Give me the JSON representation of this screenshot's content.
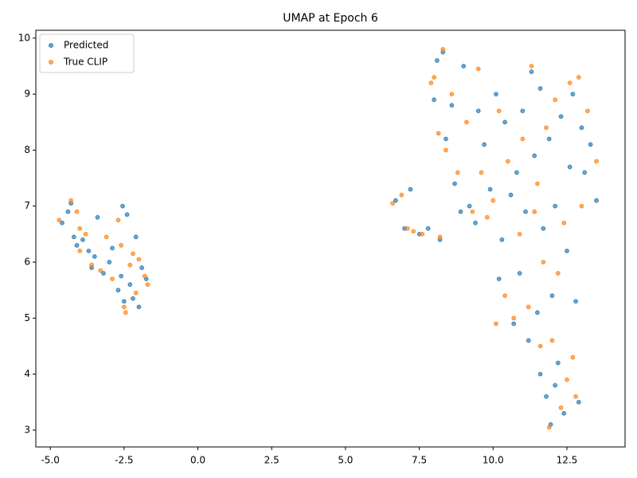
{
  "chart_data": {
    "type": "scatter",
    "title": "UMAP at Epoch 6",
    "legend": "upper left",
    "xlim": [
      -5.49,
      14.47
    ],
    "ylim": [
      2.7,
      10.14
    ],
    "xticks": [
      {
        "value": -5,
        "label": "-5.0"
      },
      -2.5,
      {
        "value": 0,
        "label": "0.0"
      },
      2.5,
      {
        "value": 5,
        "label": "5.0"
      },
      7.5,
      {
        "value": 10,
        "label": "10.0"
      },
      12.5
    ],
    "yticks": [
      3,
      4,
      5,
      6,
      7,
      8,
      9,
      10
    ],
    "series": [
      {
        "name": "Predicted",
        "color": "#1f77b4",
        "x": [
          -4.6,
          -4.4,
          -4.3,
          -4.2,
          -4.1,
          -3.9,
          -3.7,
          -3.6,
          -3.4,
          -3.2,
          -3.0,
          -2.9,
          -2.7,
          -2.6,
          -2.55,
          -2.4,
          -2.3,
          -2.2,
          -2.1,
          -2.0,
          -1.9,
          -1.75,
          -2.5,
          -3.5,
          6.7,
          7.0,
          7.2,
          7.5,
          7.8,
          8.0,
          8.1,
          8.2,
          8.3,
          8.4,
          8.6,
          8.7,
          8.9,
          9.2,
          9.4,
          9.5,
          9.7,
          9.9,
          10.1,
          10.2,
          10.3,
          10.4,
          10.6,
          10.7,
          10.9,
          11.0,
          11.1,
          11.2,
          11.3,
          11.4,
          11.5,
          11.6,
          11.7,
          11.8,
          11.9,
          11.95,
          12.0,
          12.1,
          12.2,
          12.3,
          12.4,
          12.5,
          12.6,
          12.7,
          12.8,
          12.9,
          13.0,
          13.1,
          13.3,
          13.5,
          11.6,
          12.1,
          9.0,
          10.8
        ],
        "values": [
          6.7,
          6.9,
          7.05,
          6.45,
          6.3,
          6.4,
          6.2,
          5.9,
          6.8,
          5.8,
          6.0,
          6.25,
          5.5,
          5.75,
          7.0,
          6.85,
          5.6,
          5.35,
          6.45,
          5.2,
          5.9,
          5.7,
          5.3,
          6.1,
          7.1,
          6.6,
          7.3,
          6.5,
          6.6,
          8.9,
          9.6,
          6.4,
          9.75,
          8.2,
          8.8,
          7.4,
          6.9,
          7.0,
          6.7,
          8.7,
          8.1,
          7.3,
          9.0,
          5.7,
          6.4,
          8.5,
          7.2,
          4.9,
          5.8,
          8.7,
          6.9,
          4.6,
          9.4,
          7.9,
          5.1,
          9.1,
          6.6,
          3.6,
          8.2,
          3.1,
          5.4,
          7.0,
          4.2,
          8.6,
          3.3,
          6.2,
          7.7,
          9.0,
          5.3,
          3.5,
          8.4,
          7.6,
          8.1,
          7.1,
          4.0,
          3.8,
          9.5,
          7.6
        ]
      },
      {
        "name": "True CLIP",
        "color": "#ff7f0e",
        "x": [
          -4.7,
          -4.3,
          -4.1,
          -4.0,
          -3.8,
          -3.6,
          -3.3,
          -3.1,
          -2.9,
          -2.7,
          -2.5,
          -2.45,
          -2.3,
          -2.2,
          -2.1,
          -2.0,
          -1.8,
          -1.7,
          -2.6,
          -4.0,
          6.6,
          6.9,
          7.1,
          7.3,
          7.6,
          7.9,
          8.0,
          8.15,
          8.2,
          8.3,
          8.4,
          8.6,
          8.8,
          9.1,
          9.3,
          9.5,
          9.6,
          9.8,
          10.0,
          10.2,
          10.4,
          10.5,
          10.7,
          10.9,
          11.0,
          11.2,
          11.3,
          11.5,
          11.6,
          11.7,
          11.8,
          11.9,
          12.0,
          12.1,
          12.2,
          12.3,
          12.4,
          12.6,
          12.7,
          12.8,
          12.9,
          13.0,
          13.2,
          13.5,
          12.5,
          11.4,
          10.1
        ],
        "values": [
          6.75,
          7.1,
          6.9,
          6.2,
          6.5,
          5.95,
          5.85,
          6.45,
          5.7,
          6.75,
          5.2,
          5.1,
          5.95,
          6.15,
          5.45,
          6.05,
          5.75,
          5.6,
          6.3,
          6.6,
          7.05,
          7.2,
          6.6,
          6.55,
          6.5,
          9.2,
          9.3,
          8.3,
          6.45,
          9.8,
          8.0,
          9.0,
          7.6,
          8.5,
          6.9,
          9.45,
          7.6,
          6.8,
          7.1,
          8.7,
          5.4,
          7.8,
          5.0,
          6.5,
          8.2,
          5.2,
          9.5,
          7.4,
          4.5,
          6.0,
          8.4,
          3.05,
          4.6,
          8.9,
          5.8,
          3.4,
          6.7,
          9.2,
          4.3,
          3.6,
          9.3,
          7.0,
          8.7,
          7.8,
          3.9,
          6.9,
          4.9
        ]
      }
    ]
  }
}
